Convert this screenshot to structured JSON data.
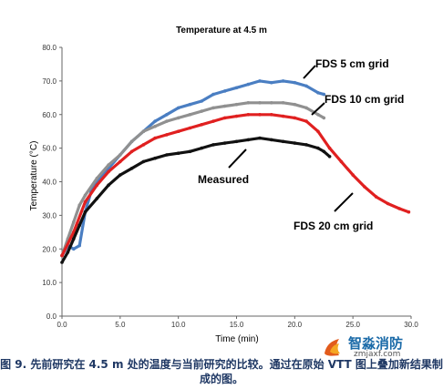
{
  "chart_data": {
    "type": "line",
    "title": "Temperature at 4.5 m",
    "xlabel": "Time (min)",
    "ylabel": "Temperature (°C)",
    "xlim": [
      0,
      30
    ],
    "ylim": [
      0,
      80
    ],
    "xticks": [
      "0.0",
      "5.0",
      "10.0",
      "15.0",
      "20.0",
      "25.0",
      "30.0"
    ],
    "yticks": [
      "0.0",
      "10.0",
      "20.0",
      "30.0",
      "40.0",
      "50.0",
      "60.0",
      "70.0",
      "80.0"
    ],
    "grid": false,
    "series": [
      {
        "name": "FDS 5 cm grid",
        "color": "#4a7ec2",
        "points": [
          [
            0,
            18
          ],
          [
            0.5,
            21
          ],
          [
            1.0,
            20
          ],
          [
            1.5,
            21
          ],
          [
            2.0,
            31
          ],
          [
            2.5,
            37
          ],
          [
            3.0,
            40
          ],
          [
            4.0,
            44
          ],
          [
            5.0,
            48
          ],
          [
            6.0,
            52
          ],
          [
            7.0,
            55
          ],
          [
            8.0,
            58
          ],
          [
            9.0,
            60
          ],
          [
            10.0,
            62
          ],
          [
            11.0,
            63
          ],
          [
            12.0,
            64
          ],
          [
            13.0,
            66
          ],
          [
            14.0,
            67
          ],
          [
            15.0,
            68
          ],
          [
            16.0,
            69
          ],
          [
            17.0,
            70
          ],
          [
            18.0,
            69.5
          ],
          [
            19.0,
            70
          ],
          [
            20.0,
            69.5
          ],
          [
            21.0,
            68.5
          ],
          [
            22.0,
            66.5
          ],
          [
            22.5,
            66
          ]
        ]
      },
      {
        "name": "FDS 10 cm grid",
        "color": "#909090",
        "points": [
          [
            0,
            18
          ],
          [
            0.5,
            23
          ],
          [
            1.0,
            28
          ],
          [
            1.5,
            33
          ],
          [
            2.0,
            36
          ],
          [
            3.0,
            41
          ],
          [
            4.0,
            45
          ],
          [
            5.0,
            48
          ],
          [
            6.0,
            52
          ],
          [
            7.0,
            55
          ],
          [
            8.0,
            56.5
          ],
          [
            9.0,
            58
          ],
          [
            10.0,
            59
          ],
          [
            11.0,
            60
          ],
          [
            12.0,
            61
          ],
          [
            13.0,
            62
          ],
          [
            14.0,
            62.5
          ],
          [
            15.0,
            63
          ],
          [
            16.0,
            63.5
          ],
          [
            17.0,
            63.5
          ],
          [
            18.0,
            63.5
          ],
          [
            19.0,
            63.5
          ],
          [
            20.0,
            63
          ],
          [
            21.0,
            62
          ],
          [
            22.0,
            60
          ],
          [
            22.5,
            59
          ]
        ]
      },
      {
        "name": "FDS 20 cm grid",
        "color": "#e02020",
        "points": [
          [
            0,
            18
          ],
          [
            1.0,
            25
          ],
          [
            2.0,
            34
          ],
          [
            3.0,
            39
          ],
          [
            4.0,
            43
          ],
          [
            5.0,
            46
          ],
          [
            6.0,
            49
          ],
          [
            7.0,
            51
          ],
          [
            8.0,
            53
          ],
          [
            9.0,
            54
          ],
          [
            10.0,
            55
          ],
          [
            11.0,
            56
          ],
          [
            12.0,
            57
          ],
          [
            13.0,
            58
          ],
          [
            14.0,
            59
          ],
          [
            15.0,
            59.5
          ],
          [
            16.0,
            60
          ],
          [
            17.0,
            60
          ],
          [
            18.0,
            60
          ],
          [
            19.0,
            59.5
          ],
          [
            20.0,
            59
          ],
          [
            21.0,
            58
          ],
          [
            22.0,
            55
          ],
          [
            23.0,
            50
          ],
          [
            24.0,
            46
          ],
          [
            25.0,
            42
          ],
          [
            26.0,
            38.5
          ],
          [
            27.0,
            35.5
          ],
          [
            28.0,
            33.5
          ],
          [
            29.0,
            32
          ],
          [
            29.8,
            31
          ]
        ]
      },
      {
        "name": "Measured",
        "color": "#111111",
        "points": [
          [
            0,
            16
          ],
          [
            0.5,
            19
          ],
          [
            1.0,
            23
          ],
          [
            1.5,
            27
          ],
          [
            2.0,
            31
          ],
          [
            3.0,
            35
          ],
          [
            4.0,
            39
          ],
          [
            5.0,
            42
          ],
          [
            6.0,
            44
          ],
          [
            7.0,
            46
          ],
          [
            8.0,
            47
          ],
          [
            9.0,
            48
          ],
          [
            10.0,
            48.5
          ],
          [
            11.0,
            49
          ],
          [
            12.0,
            50
          ],
          [
            13.0,
            51
          ],
          [
            14.0,
            51.5
          ],
          [
            15.0,
            52
          ],
          [
            16.0,
            52.5
          ],
          [
            17.0,
            53
          ],
          [
            18.0,
            52.5
          ],
          [
            19.0,
            52
          ],
          [
            20.0,
            51.5
          ],
          [
            21.0,
            51
          ],
          [
            22.0,
            50
          ],
          [
            22.5,
            49
          ],
          [
            23.0,
            47.5
          ]
        ]
      }
    ],
    "annotations": [
      "FDS 5 cm grid",
      "FDS 10 cm grid",
      "Measured",
      "FDS 20 cm grid"
    ]
  },
  "caption": "图 9. 先前研究在 4.5 m 处的温度与当前研究的比较。通过在原始 VTT 图上叠加新结果制成的图。",
  "watermark": {
    "title": "智淼消防",
    "sub": "zmjaxf.com"
  }
}
